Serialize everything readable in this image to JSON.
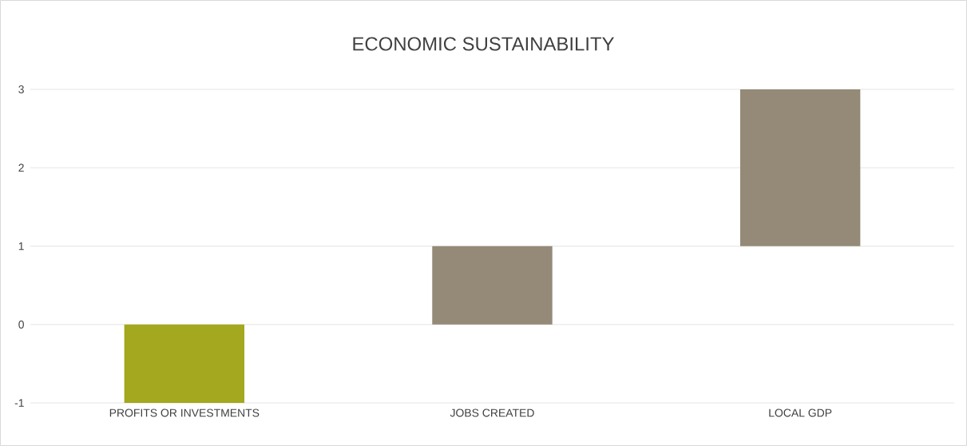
{
  "chart_data": {
    "type": "bar",
    "title": "ECONOMIC SUSTAINABILITY",
    "categories": [
      "PROFITS OR INVESTMENTS",
      "JOBS CREATED",
      "LOCAL GDP"
    ],
    "base": [
      0,
      0,
      1
    ],
    "values": [
      -1,
      1,
      2
    ],
    "colors": [
      "#a3a81e",
      "#948a77",
      "#948a77"
    ],
    "ylim": [
      -1,
      3
    ],
    "yticks": [
      -1,
      0,
      1,
      2,
      3
    ],
    "grid": "y"
  }
}
